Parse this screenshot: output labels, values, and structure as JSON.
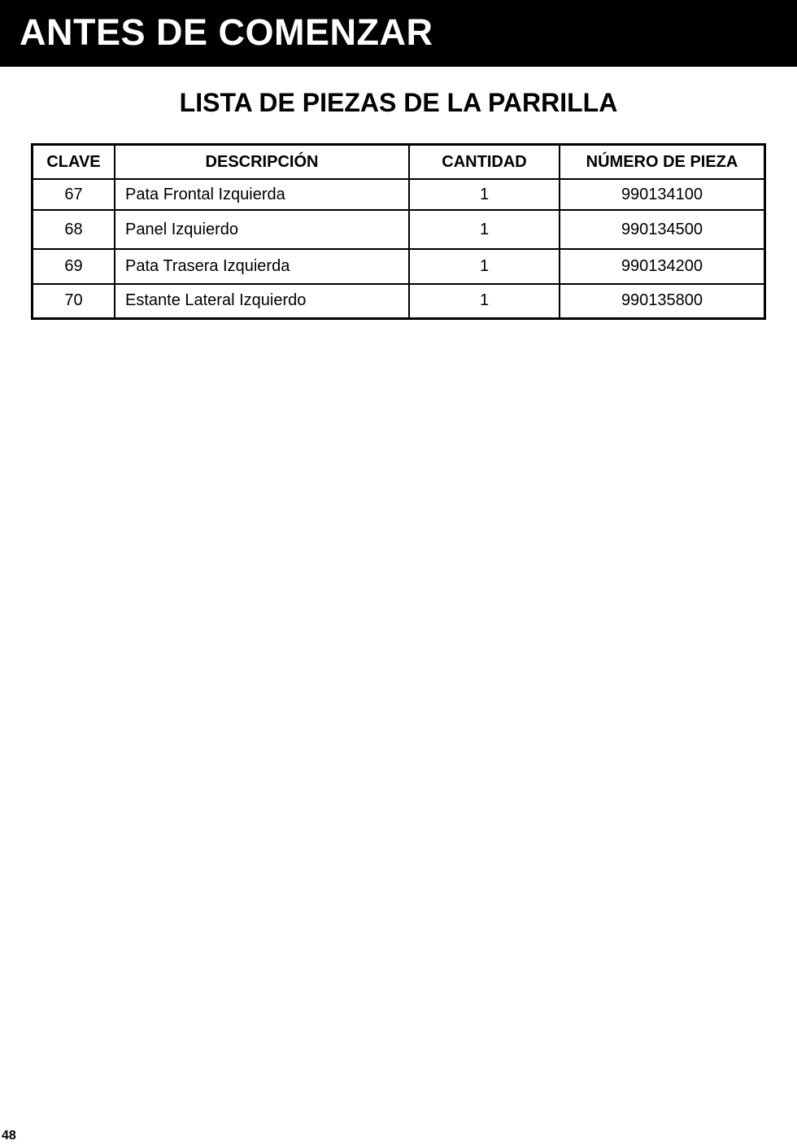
{
  "banner": {
    "title": "ANTES DE COMENZAR"
  },
  "section_title": "LISTA DE PIEZAS DE LA PARRILLA",
  "table": {
    "headers": [
      "CLAVE",
      "DESCRIPCIÓN",
      "CANTIDAD",
      "NÚMERO DE PIEZA"
    ],
    "rows": [
      [
        "67",
        "Pata Frontal Izquierda",
        "1",
        "990134100"
      ],
      [
        "68",
        "Panel Izquierdo",
        "1",
        "990134500"
      ],
      [
        "69",
        "Pata Trasera Izquierda",
        "1",
        "990134200"
      ],
      [
        "70",
        "Estante Lateral Izquierdo",
        "1",
        "990135800"
      ]
    ]
  },
  "page_number": "48"
}
